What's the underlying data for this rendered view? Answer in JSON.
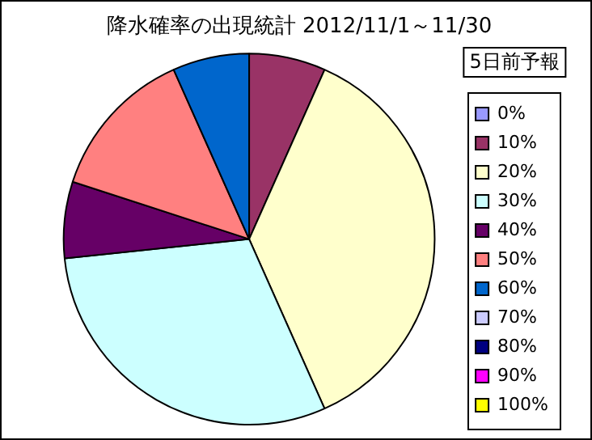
{
  "chart_data": {
    "type": "pie",
    "title": "降水確率の出現統計 2012/11/1～11/30",
    "legend_title": "5日前予報",
    "legend": "right",
    "categories": [
      "0%",
      "10%",
      "20%",
      "30%",
      "40%",
      "50%",
      "60%",
      "70%",
      "80%",
      "90%",
      "100%"
    ],
    "values": [
      0,
      6.67,
      36.67,
      30,
      6.67,
      13.33,
      6.67,
      0,
      0,
      0,
      0
    ],
    "colors": [
      "#9999ff",
      "#993366",
      "#ffffcc",
      "#ccffff",
      "#660066",
      "#ff8080",
      "#0066cc",
      "#ccccff",
      "#000080",
      "#ff00ff",
      "#ffff00"
    ]
  }
}
